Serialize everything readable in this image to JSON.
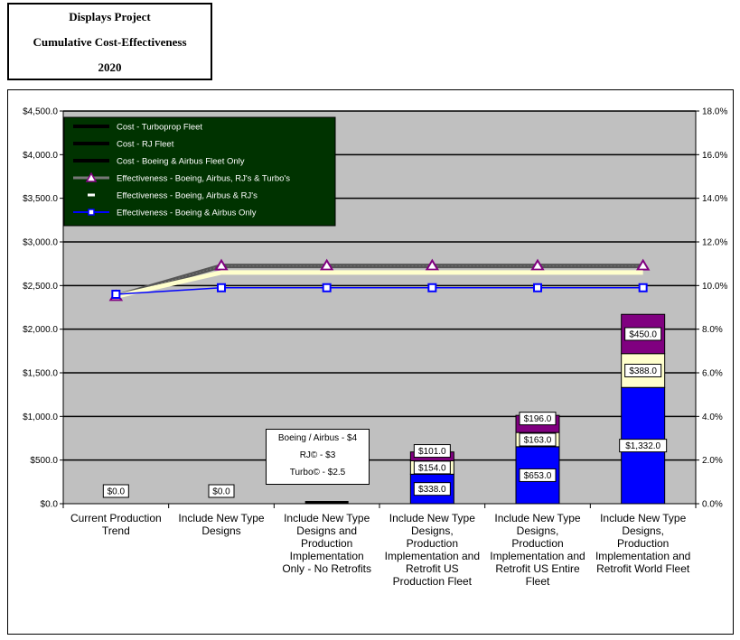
{
  "header": {
    "line1": "Displays Project",
    "line2": "Cumulative Cost-Effectiveness",
    "line3": "2020"
  },
  "annotation": {
    "line1": "Boeing / Airbus - $4",
    "line2": "RJ© - $3",
    "line3": "Turbo© - $2.5"
  },
  "chart_data": {
    "type": "bar",
    "categories": [
      [
        "Current Production",
        "Trend"
      ],
      [
        "Include New Type",
        "Designs"
      ],
      [
        "Include New Type",
        "Designs and",
        "Production",
        "Implementation",
        "Only - No Retrofits"
      ],
      [
        "Include New Type",
        "Designs,",
        "Production",
        "Implementation and",
        "Retrofit US",
        "Production Fleet"
      ],
      [
        "Include New Type",
        "Designs,",
        "Production",
        "Implementation and",
        "Retrofit US Entire",
        "Fleet"
      ],
      [
        "Include New Type",
        "Designs,",
        "Production",
        "Implementation and",
        "Retrofit World Fleet"
      ]
    ],
    "y_left": {
      "ylim": [
        0,
        4500
      ],
      "ticks": [
        "$0.0",
        "$500.0",
        "$1,000.0",
        "$1,500.0",
        "$2,000.0",
        "$2,500.0",
        "$3,000.0",
        "$3,500.0",
        "$4,000.0",
        "$4,500.0"
      ]
    },
    "y_right": {
      "ylim": [
        0,
        18
      ],
      "ticks": [
        "0.0%",
        "2.0%",
        "4.0%",
        "6.0%",
        "8.0%",
        "10.0%",
        "12.0%",
        "14.0%",
        "16.0%",
        "18.0%"
      ]
    },
    "bar_series": [
      {
        "name": "Cost - Boeing & Airbus Fleet Only",
        "color": "#0000ff",
        "values": [
          0,
          0,
          0,
          338,
          653,
          1332
        ],
        "labels": [
          "$0.0",
          "$0.0",
          "",
          "$338.0",
          "$653.0",
          "$1,332.0"
        ]
      },
      {
        "name": "Cost - RJ Fleet",
        "color": "#ffffcc",
        "values": [
          0,
          0,
          0,
          154,
          163,
          388
        ],
        "labels": [
          "",
          "",
          "",
          "$154.0",
          "$163.0",
          "$388.0"
        ]
      },
      {
        "name": "Cost - Turboprop Fleet",
        "color": "#800080",
        "values": [
          0,
          0,
          0,
          101,
          196,
          450
        ],
        "labels": [
          "",
          "",
          "",
          "$101.0",
          "$196.0",
          "$450.0"
        ]
      }
    ],
    "line_series": [
      {
        "name": "Effectiveness - Boeing, Airbus, RJ's & Turbo's",
        "color": "#800080",
        "marker": "triangle",
        "values": [
          9.5,
          10.9,
          10.9,
          10.9,
          10.9,
          10.9
        ]
      },
      {
        "name": "Effectiveness - Boeing, Airbus & RJ's",
        "color": "#ffffcc",
        "marker": "dash",
        "values": [
          9.5,
          10.6,
          10.6,
          10.6,
          10.6,
          10.6
        ]
      },
      {
        "name": "Effectiveness - Boeing & Airbus Only",
        "color": "#0000ff",
        "marker": "square",
        "values": [
          9.6,
          9.9,
          9.9,
          9.9,
          9.9,
          9.9
        ]
      }
    ],
    "legend": {
      "placement": "top-left",
      "entries": [
        "Cost - Turboprop Fleet",
        "Cost - RJ Fleet",
        "Cost - Boeing & Airbus Fleet Only",
        "Effectiveness - Boeing, Airbus, RJ's & Turbo's",
        "Effectiveness - Boeing, Airbus & RJ's",
        "Effectiveness - Boeing & Airbus Only"
      ]
    },
    "colors": {
      "plot_bg": "#c0c0c0",
      "legend_bg": "#003300",
      "grid": "#000000"
    }
  }
}
